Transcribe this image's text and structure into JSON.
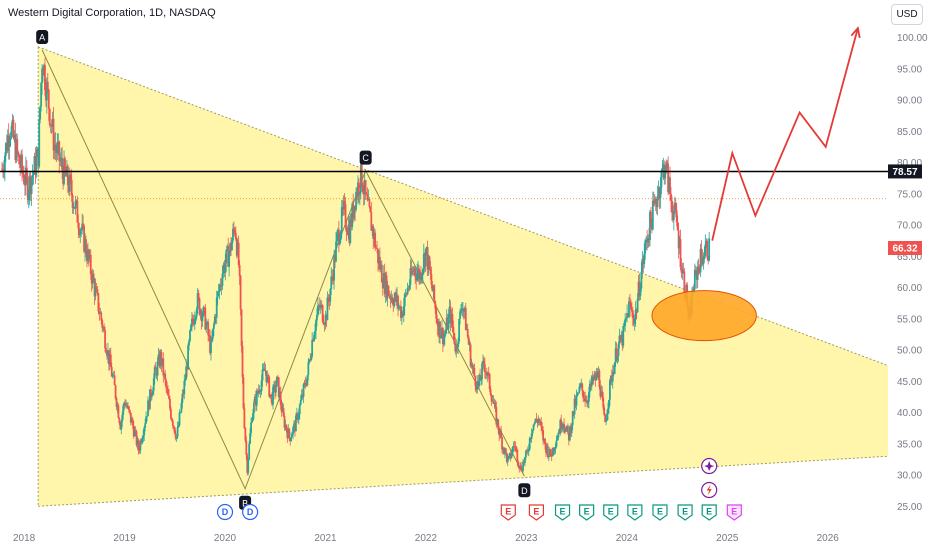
{
  "header": {
    "title": "Western Digital Corporation, 1D, NASDAQ",
    "currency_button": "USD"
  },
  "chart_data": {
    "type": "candlestick",
    "title": "Western Digital Corporation, 1D, NASDAQ",
    "ylim": [
      22,
      106
    ],
    "y_ticks": [
      "25.00",
      "30.00",
      "35.00",
      "40.00",
      "45.00",
      "50.00",
      "55.00",
      "60.00",
      "65.00",
      "70.00",
      "75.00",
      "80.00",
      "85.00",
      "90.00",
      "95.00",
      "100.00"
    ],
    "y_tick_values": [
      25,
      30,
      35,
      40,
      45,
      50,
      55,
      60,
      65,
      70,
      75,
      80,
      85,
      90,
      95,
      100
    ],
    "x_ticks": [
      "2018",
      "2019",
      "2020",
      "2021",
      "2022",
      "2023",
      "2024",
      "2025",
      "2026"
    ],
    "x_tick_values": [
      2018.0,
      2019.0,
      2020.0,
      2021.0,
      2022.0,
      2023.0,
      2024.0,
      2025.0,
      2026.0
    ],
    "xlim": [
      2017.76,
      2026.6
    ],
    "price_path": [
      [
        2017.78,
        79
      ],
      [
        2017.86,
        86
      ],
      [
        2017.95,
        80
      ],
      [
        2018.04,
        76
      ],
      [
        2018.14,
        81
      ],
      [
        2018.18,
        97
      ],
      [
        2018.24,
        90
      ],
      [
        2018.3,
        83
      ],
      [
        2018.38,
        79
      ],
      [
        2018.46,
        76
      ],
      [
        2018.54,
        71
      ],
      [
        2018.62,
        66
      ],
      [
        2018.7,
        60
      ],
      [
        2018.78,
        54
      ],
      [
        2018.84,
        49
      ],
      [
        2018.9,
        44
      ],
      [
        2018.96,
        38
      ],
      [
        2019.0,
        42
      ],
      [
        2019.08,
        38
      ],
      [
        2019.14,
        34
      ],
      [
        2019.22,
        40
      ],
      [
        2019.3,
        46
      ],
      [
        2019.36,
        49
      ],
      [
        2019.4,
        45
      ],
      [
        2019.46,
        40
      ],
      [
        2019.52,
        36
      ],
      [
        2019.6,
        45
      ],
      [
        2019.66,
        53
      ],
      [
        2019.72,
        58
      ],
      [
        2019.8,
        55
      ],
      [
        2019.86,
        50
      ],
      [
        2019.92,
        58
      ],
      [
        2019.98,
        63
      ],
      [
        2020.05,
        66
      ],
      [
        2020.1,
        70
      ],
      [
        2020.14,
        63
      ],
      [
        2020.18,
        42
      ],
      [
        2020.22,
        31
      ],
      [
        2020.27,
        40
      ],
      [
        2020.34,
        44
      ],
      [
        2020.4,
        47
      ],
      [
        2020.46,
        42
      ],
      [
        2020.52,
        45
      ],
      [
        2020.58,
        39
      ],
      [
        2020.64,
        36
      ],
      [
        2020.7,
        38
      ],
      [
        2020.76,
        42
      ],
      [
        2020.82,
        46
      ],
      [
        2020.88,
        53
      ],
      [
        2020.94,
        57
      ],
      [
        2021.0,
        55
      ],
      [
        2021.06,
        61
      ],
      [
        2021.12,
        68
      ],
      [
        2021.18,
        72
      ],
      [
        2021.24,
        69
      ],
      [
        2021.3,
        75
      ],
      [
        2021.36,
        78
      ],
      [
        2021.4,
        74
      ],
      [
        2021.46,
        70
      ],
      [
        2021.52,
        65
      ],
      [
        2021.58,
        61
      ],
      [
        2021.64,
        59
      ],
      [
        2021.7,
        58
      ],
      [
        2021.76,
        56
      ],
      [
        2021.82,
        60
      ],
      [
        2021.88,
        63
      ],
      [
        2021.94,
        62
      ],
      [
        2022.0,
        66
      ],
      [
        2022.06,
        60
      ],
      [
        2022.12,
        54
      ],
      [
        2022.18,
        52
      ],
      [
        2022.24,
        56
      ],
      [
        2022.3,
        50
      ],
      [
        2022.36,
        58
      ],
      [
        2022.4,
        54
      ],
      [
        2022.46,
        47
      ],
      [
        2022.52,
        44
      ],
      [
        2022.58,
        48
      ],
      [
        2022.64,
        44
      ],
      [
        2022.7,
        39
      ],
      [
        2022.76,
        35
      ],
      [
        2022.82,
        32
      ],
      [
        2022.88,
        35
      ],
      [
        2022.94,
        31
      ],
      [
        2023.0,
        33
      ],
      [
        2023.06,
        38
      ],
      [
        2023.12,
        39
      ],
      [
        2023.18,
        35
      ],
      [
        2023.24,
        33
      ],
      [
        2023.3,
        36
      ],
      [
        2023.36,
        39
      ],
      [
        2023.42,
        36
      ],
      [
        2023.48,
        41
      ],
      [
        2023.54,
        44
      ],
      [
        2023.6,
        42
      ],
      [
        2023.66,
        45
      ],
      [
        2023.72,
        46
      ],
      [
        2023.78,
        38
      ],
      [
        2023.84,
        45
      ],
      [
        2023.9,
        50
      ],
      [
        2023.96,
        52
      ],
      [
        2024.02,
        57
      ],
      [
        2024.08,
        55
      ],
      [
        2024.14,
        62
      ],
      [
        2024.2,
        68
      ],
      [
        2024.26,
        72
      ],
      [
        2024.32,
        76
      ],
      [
        2024.38,
        80
      ],
      [
        2024.44,
        74
      ],
      [
        2024.5,
        70
      ],
      [
        2024.55,
        63
      ],
      [
        2024.6,
        58
      ],
      [
        2024.62,
        54
      ],
      [
        2024.66,
        60
      ],
      [
        2024.72,
        64
      ],
      [
        2024.78,
        66
      ],
      [
        2024.82,
        66.32
      ]
    ],
    "last_price": "66.32",
    "resistance_level": "78.57",
    "resistance_value": 78.57,
    "dotted_level": 74.2,
    "triangle": {
      "upper": [
        [
          2018.14,
          98.5
        ],
        [
          2026.6,
          47.5
        ]
      ],
      "lower": [
        [
          2018.14,
          25.0
        ],
        [
          2026.6,
          33.0
        ]
      ]
    },
    "pattern_points": [
      {
        "label": "A",
        "x": 2018.18,
        "y": 98
      },
      {
        "label": "B",
        "x": 2020.2,
        "y": 27.8
      },
      {
        "label": "C",
        "x": 2021.4,
        "y": 78.7
      },
      {
        "label": "D",
        "x": 2022.98,
        "y": 29.8
      }
    ],
    "projection": [
      [
        2024.85,
        67.5
      ],
      [
        2025.05,
        81.5
      ],
      [
        2025.28,
        71.5
      ],
      [
        2025.72,
        88
      ],
      [
        2025.98,
        82.5
      ],
      [
        2026.3,
        101.5
      ]
    ],
    "support_ellipse": {
      "x": 2024.77,
      "y": 55.5,
      "rx_years": 0.52,
      "ry_price": 4.0,
      "color": "#ffa726"
    },
    "events": [
      {
        "label": "D",
        "x": 2020.0,
        "kind": "dividend"
      },
      {
        "label": "D",
        "x": 2020.25,
        "kind": "dividend"
      },
      {
        "label": "E",
        "x": 2022.82,
        "kind": "earnings-miss"
      },
      {
        "label": "E",
        "x": 2023.1,
        "kind": "earnings-miss"
      },
      {
        "label": "E",
        "x": 2023.36,
        "kind": "earnings-beat"
      },
      {
        "label": "E",
        "x": 2023.6,
        "kind": "earnings-beat"
      },
      {
        "label": "E",
        "x": 2023.84,
        "kind": "earnings-beat"
      },
      {
        "label": "E",
        "x": 2024.08,
        "kind": "earnings-beat"
      },
      {
        "label": "E",
        "x": 2024.33,
        "kind": "earnings-beat"
      },
      {
        "label": "E",
        "x": 2024.58,
        "kind": "earnings-beat"
      },
      {
        "label": "E",
        "x": 2024.82,
        "kind": "earnings-beat"
      },
      {
        "label": "E",
        "x": 2025.07,
        "kind": "earnings-upcoming"
      }
    ],
    "colors": {
      "up": "#26a69a",
      "down": "#ef5350",
      "triangle_fill": "#fff59d",
      "projection": "#e53935",
      "resistance": "#000000",
      "last_price_tag": "#ef5350"
    }
  }
}
